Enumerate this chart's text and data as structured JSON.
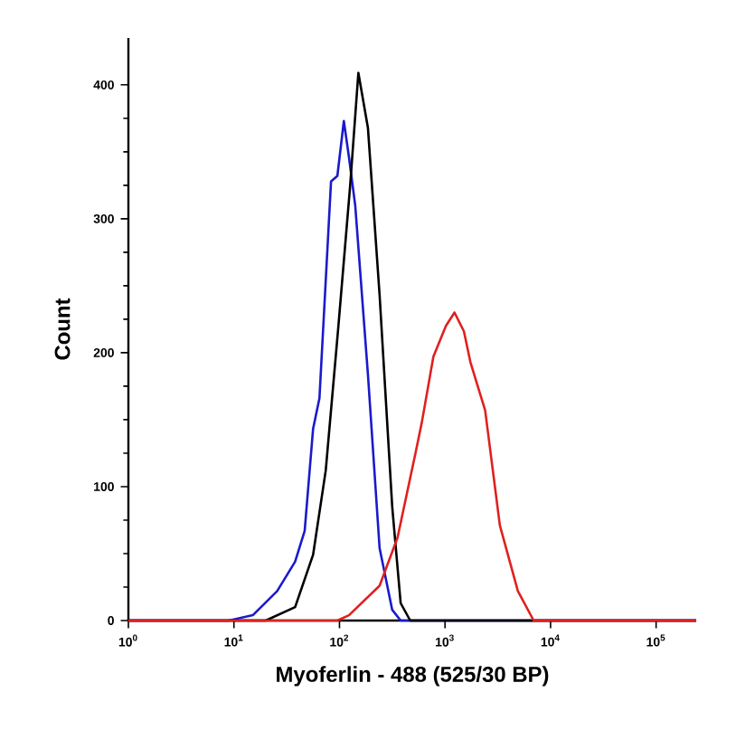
{
  "chart_data": {
    "type": "line",
    "xlabel": "Myoferlin - 488 (525/30 BP)",
    "ylabel": "Count",
    "log": "x",
    "xlim": [
      1,
      240000
    ],
    "ylim": [
      0,
      435
    ],
    "xticks": [
      {
        "value": 1,
        "label": "10$^{0}$"
      },
      {
        "value": 10,
        "label": "10$^{1}$"
      },
      {
        "value": 100,
        "label": "10$^{2}$"
      },
      {
        "value": 1000,
        "label": "10$^{3}$"
      },
      {
        "value": 10000,
        "label": "10$^{4}$"
      },
      {
        "value": 100000,
        "label": "10$^{5}$"
      }
    ],
    "yticks": [
      0,
      100,
      200,
      300,
      400
    ],
    "series": [
      {
        "color": "#1a1acc",
        "x": [
          1,
          8.9,
          15.1,
          25.7,
          38.0,
          46.8,
          56.2,
          64.6,
          83.2,
          95.5,
          110,
          123,
          141,
          186,
          240,
          316,
          380,
          240000
        ],
        "values": [
          0,
          0,
          4,
          22,
          44,
          67,
          143,
          166,
          328,
          332,
          373,
          346,
          310,
          184,
          54,
          8,
          0,
          0
        ]
      },
      {
        "color": "#000000",
        "x": [
          1,
          20.0,
          38.0,
          56.2,
          74.1,
          97.7,
          126,
          151,
          186,
          240,
          316,
          380,
          468,
          240000
        ],
        "values": [
          0,
          0,
          10,
          49,
          112,
          220,
          324,
          409,
          368,
          243,
          85,
          13,
          0,
          0
        ]
      },
      {
        "color": "#e02020",
        "x": [
          1,
          95.5,
          123,
          240,
          355,
          525,
          603,
          776,
          1020,
          1230,
          1510,
          1740,
          2400,
          3310,
          4900,
          6920,
          240000
        ],
        "values": [
          0,
          0,
          4,
          26,
          62,
          125,
          148,
          197,
          220,
          230,
          216,
          193,
          157,
          71,
          22,
          0,
          0
        ]
      }
    ]
  }
}
